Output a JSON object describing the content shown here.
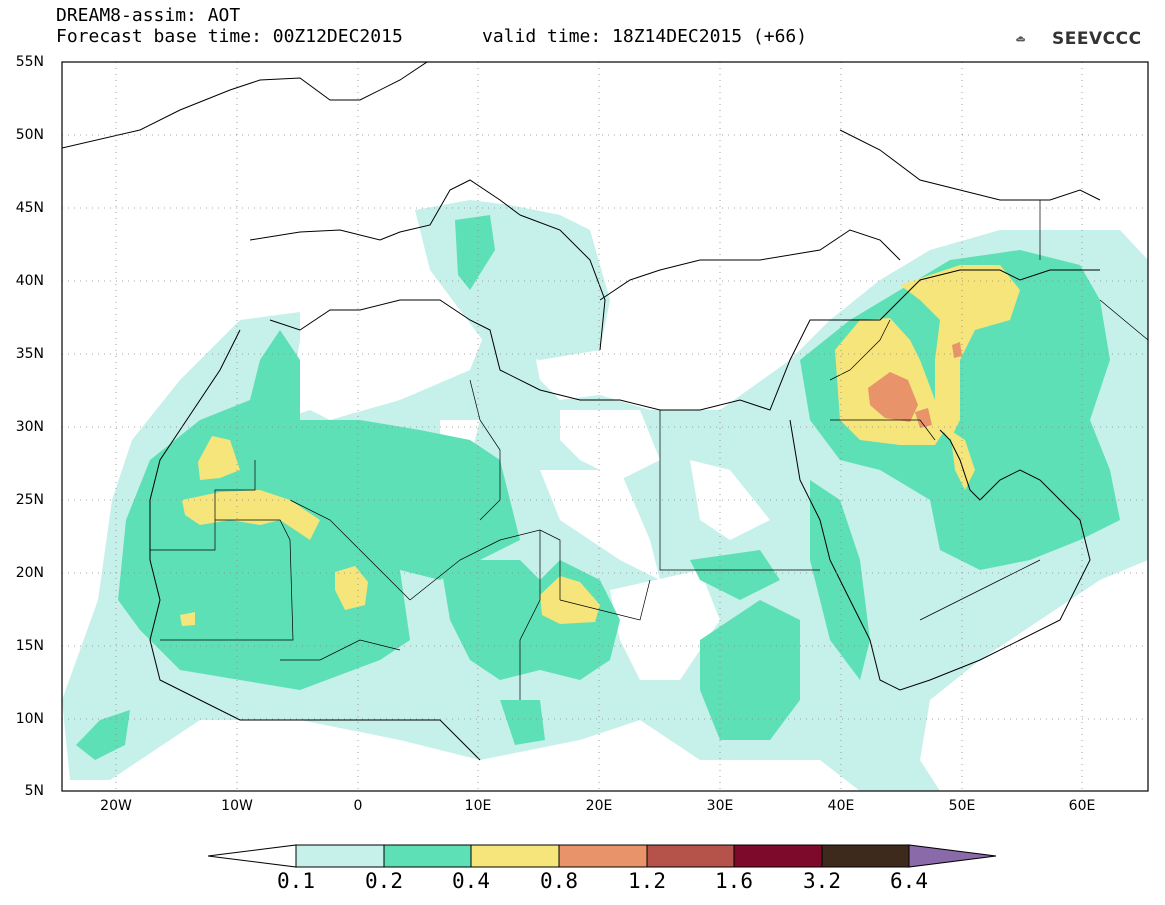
{
  "header": {
    "title_line1": "DREAM8-assim: AOT",
    "title_line2": "Forecast base time: 00Z12DEC2015",
    "title_line2b": "valid time: 18Z14DEC2015 (+66)",
    "logo_text": "SEEVCCC"
  },
  "map": {
    "projection": "lat-lon",
    "lon_range": [
      -25,
      65
    ],
    "lat_range": [
      5,
      55
    ],
    "y_ticks": [
      "55N",
      "50N",
      "45N",
      "40N",
      "35N",
      "30N",
      "25N",
      "20N",
      "15N",
      "10N",
      "5N"
    ],
    "x_ticks": [
      "20W",
      "10W",
      "0",
      "10E",
      "20E",
      "30E",
      "40E",
      "50E",
      "60E"
    ],
    "grid": "dotted"
  },
  "colorbar": {
    "labels": [
      "0.1",
      "0.2",
      "0.4",
      "0.8",
      "1.2",
      "1.6",
      "3.2",
      "6.4"
    ],
    "colors": [
      "#ffffff",
      "#c6f0ea",
      "#5ee0b6",
      "#f5e57a",
      "#e8936a",
      "#b5524a",
      "#7d0a2a",
      "#3d2a1c",
      "#8a6aa8"
    ]
  }
}
